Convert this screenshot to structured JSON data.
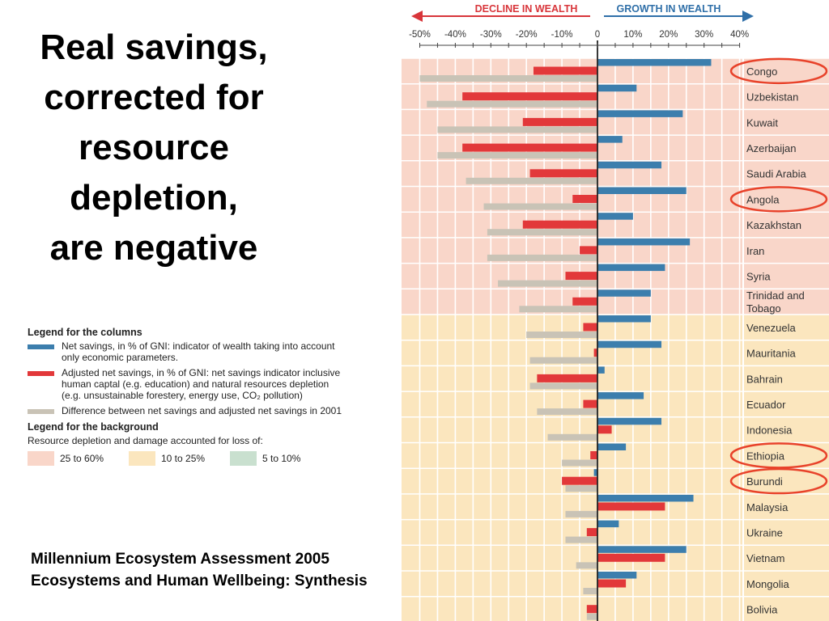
{
  "slide": {
    "title_lines": [
      "Real savings,",
      "corrected for",
      "resource",
      "depletion,",
      "are negative"
    ],
    "source_lines": [
      "Millennium Ecosystem Assessment 2005",
      "Ecosystems and Human Wellbeing: Synthesis"
    ]
  },
  "legend": {
    "columns_title": "Legend for the columns",
    "items": [
      {
        "color": "#3c7ead",
        "lines": [
          "Net savings, in % of GNI: indicator of wealth taking into account",
          "only economic parameters."
        ]
      },
      {
        "color": "#e2383a",
        "lines": [
          "Adjusted net savings, in % of GNI: net savings indicator inclusive",
          "human captal (e.g. education) and natural resources depletion",
          "(e.g. unsustainable forestery, energy use, CO₂ pollution)"
        ]
      },
      {
        "color": "#c9c3b6",
        "lines": [
          "Difference between net savings and adjusted net savings in 2001"
        ]
      }
    ],
    "background_title": "Legend for the background",
    "background_subtitle": "Resource depletion and damage accounted for loss of:",
    "background_items": [
      {
        "color": "#f9d6c9",
        "label": "25 to 60%"
      },
      {
        "color": "#fbe6be",
        "label": "10 to 25%"
      },
      {
        "color": "#c9e0cf",
        "label": "5 to 10%"
      }
    ]
  },
  "chart_data": {
    "type": "bar",
    "orientation": "horizontal",
    "header_left": "DECLINE IN WEALTH",
    "header_right": "GROWTH IN WEALTH",
    "header_left_color": "#d8353a",
    "header_right_color": "#2f6fa8",
    "x_ticks": [
      "-50%",
      "-40%",
      "-30%",
      "-20%",
      "-10%",
      "0",
      "10%",
      "20%",
      "30%",
      "40%"
    ],
    "xlim": [
      -50,
      40
    ],
    "series_colors": {
      "net": "#3c7ead",
      "adjusted": "#e2383a",
      "difference": "#c9c3b6"
    },
    "background_colors": {
      "high": "#f9d6c9",
      "medium": "#fbe6be"
    },
    "highlight_color": "#e8422a",
    "rows": [
      {
        "country": [
          "Congo"
        ],
        "net": 32,
        "adjusted": -18,
        "difference": -50,
        "band": "high",
        "highlight": true
      },
      {
        "country": [
          "Uzbekistan"
        ],
        "net": 11,
        "adjusted": -38,
        "difference": -48,
        "band": "high",
        "highlight": false
      },
      {
        "country": [
          "Kuwait"
        ],
        "net": 24,
        "adjusted": -21,
        "difference": -45,
        "band": "high",
        "highlight": false
      },
      {
        "country": [
          "Azerbaijan"
        ],
        "net": 7,
        "adjusted": -38,
        "difference": -45,
        "band": "high",
        "highlight": false
      },
      {
        "country": [
          "Saudi Arabia"
        ],
        "net": 18,
        "adjusted": -19,
        "difference": -37,
        "band": "high",
        "highlight": false
      },
      {
        "country": [
          "Angola"
        ],
        "net": 25,
        "adjusted": -7,
        "difference": -32,
        "band": "high",
        "highlight": true
      },
      {
        "country": [
          "Kazakhstan"
        ],
        "net": 10,
        "adjusted": -21,
        "difference": -31,
        "band": "high",
        "highlight": false
      },
      {
        "country": [
          "Iran"
        ],
        "net": 26,
        "adjusted": -5,
        "difference": -31,
        "band": "high",
        "highlight": false
      },
      {
        "country": [
          "Syria"
        ],
        "net": 19,
        "adjusted": -9,
        "difference": -28,
        "band": "high",
        "highlight": false
      },
      {
        "country": [
          "Trinidad and",
          "Tobago"
        ],
        "net": 15,
        "adjusted": -7,
        "difference": -22,
        "band": "high",
        "highlight": false
      },
      {
        "country": [
          "Venezuela"
        ],
        "net": 15,
        "adjusted": -4,
        "difference": -20,
        "band": "medium",
        "highlight": false
      },
      {
        "country": [
          "Mauritania"
        ],
        "net": 18,
        "adjusted": -1,
        "difference": -19,
        "band": "medium",
        "highlight": false
      },
      {
        "country": [
          "Bahrain"
        ],
        "net": 2,
        "adjusted": -17,
        "difference": -19,
        "band": "medium",
        "highlight": false
      },
      {
        "country": [
          "Ecuador"
        ],
        "net": 13,
        "adjusted": -4,
        "difference": -17,
        "band": "medium",
        "highlight": false
      },
      {
        "country": [
          "Indonesia"
        ],
        "net": 18,
        "adjusted": 4,
        "difference": -14,
        "band": "medium",
        "highlight": false
      },
      {
        "country": [
          "Ethiopia"
        ],
        "net": 8,
        "adjusted": -2,
        "difference": -10,
        "band": "medium",
        "highlight": true
      },
      {
        "country": [
          "Burundi"
        ],
        "net": -1,
        "adjusted": -10,
        "difference": -9,
        "band": "medium",
        "highlight": true
      },
      {
        "country": [
          "Malaysia"
        ],
        "net": 27,
        "adjusted": 19,
        "difference": -9,
        "band": "medium",
        "highlight": false
      },
      {
        "country": [
          "Ukraine"
        ],
        "net": 6,
        "adjusted": -3,
        "difference": -9,
        "band": "medium",
        "highlight": false
      },
      {
        "country": [
          "Vietnam"
        ],
        "net": 25,
        "adjusted": 19,
        "difference": -6,
        "band": "medium",
        "highlight": false
      },
      {
        "country": [
          "Mongolia"
        ],
        "net": 11,
        "adjusted": 8,
        "difference": -4,
        "band": "medium",
        "highlight": false
      },
      {
        "country": [
          "Bolivia"
        ],
        "net": 0,
        "adjusted": -3,
        "difference": -3,
        "band": "medium",
        "highlight": false
      }
    ]
  }
}
